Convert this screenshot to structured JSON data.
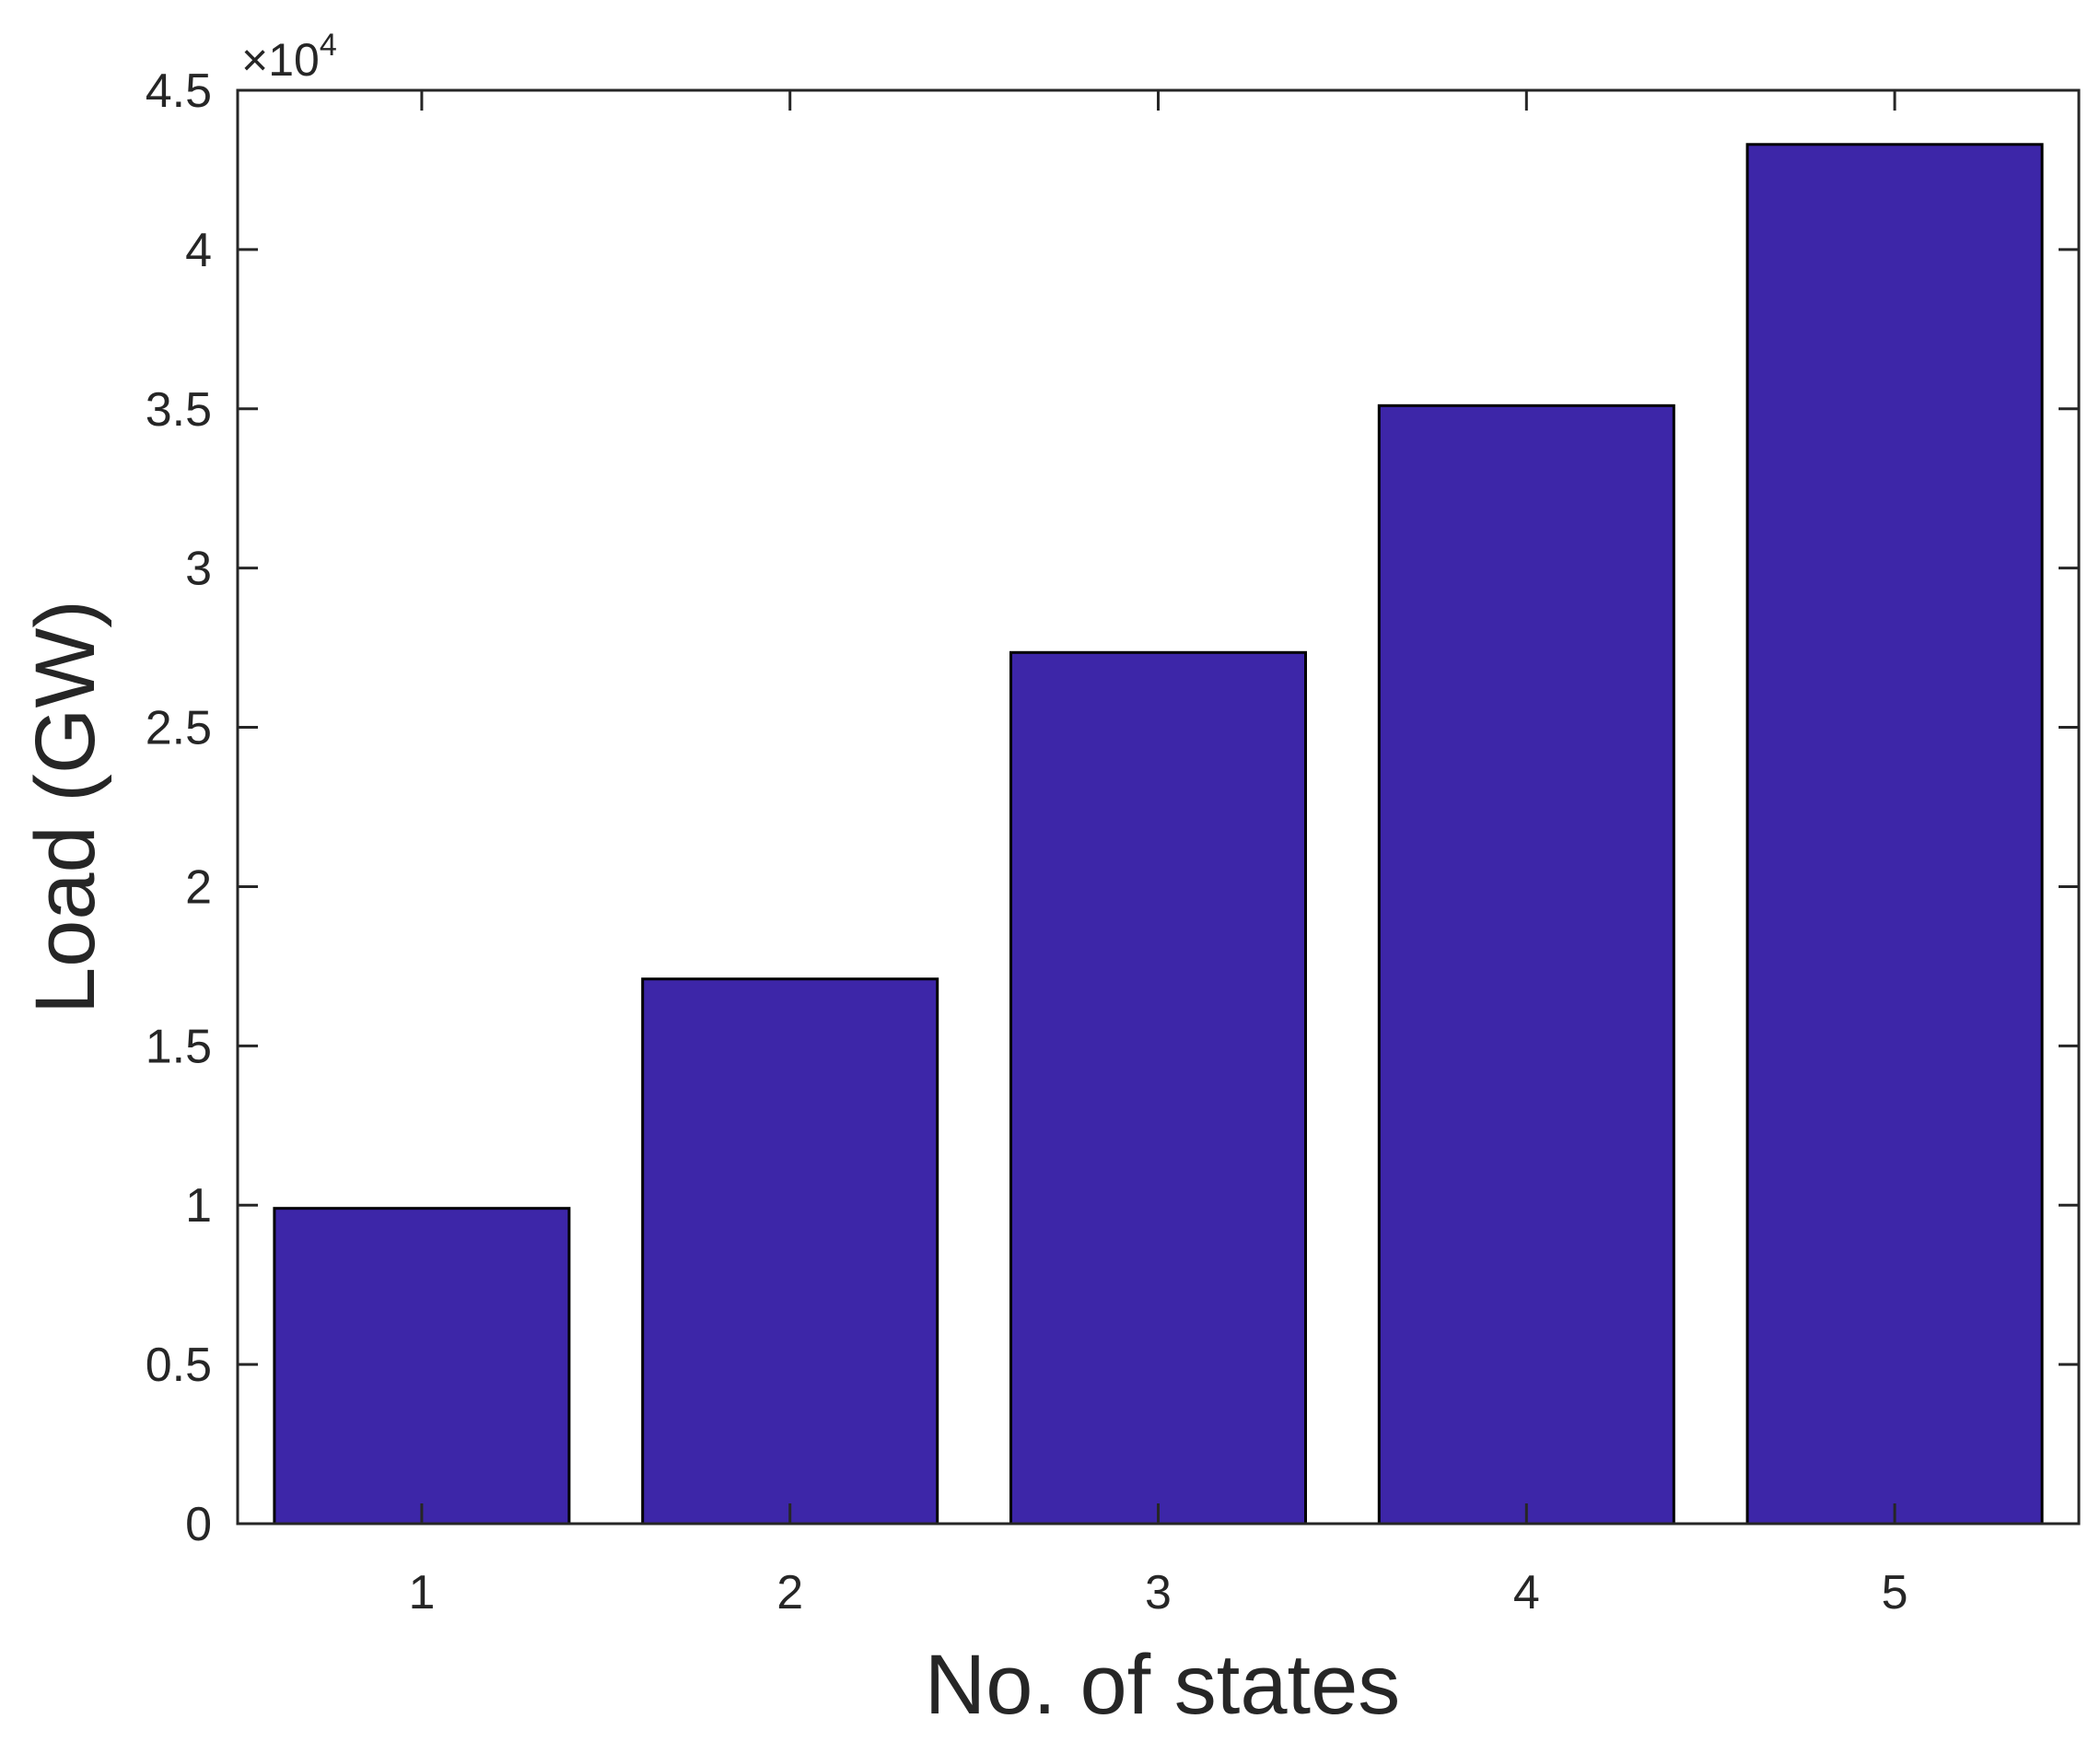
{
  "chart_data": {
    "type": "bar",
    "title": "",
    "xlabel": "No. of states",
    "ylabel": "Load (GW)",
    "exponent_label": "×10",
    "exponent_power": "4",
    "categories": [
      "1",
      "2",
      "3",
      "4",
      "5"
    ],
    "values": [
      9900,
      17100,
      27350,
      35100,
      43300
    ],
    "ylim": [
      0,
      45000
    ],
    "yticks": [
      0,
      5000,
      10000,
      15000,
      20000,
      25000,
      30000,
      35000,
      40000,
      45000
    ],
    "ytick_labels": [
      "0",
      "0.5",
      "1",
      "1.5",
      "2",
      "2.5",
      "3",
      "3.5",
      "4",
      "4.5"
    ],
    "grid": false,
    "legend": false,
    "bar_color": "#3d26a8",
    "edge_color": "#000000"
  }
}
